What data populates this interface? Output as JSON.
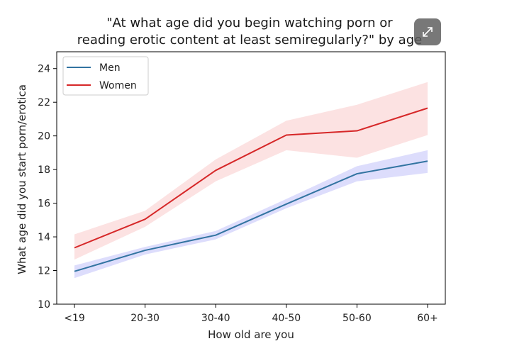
{
  "chart_data": {
    "type": "line",
    "title": "\"At what age did you begin watching porn or reading erotic content at least semiregularly?\" by age",
    "title_lines": [
      "\"At what age did you begin watching porn or",
      "reading erotic content at least semiregularly?\" by age"
    ],
    "xlabel": "How old are you",
    "ylabel": "What age did you start porn/erotica",
    "categories": [
      "<19",
      "20-30",
      "30-40",
      "40-50",
      "50-60",
      "60+"
    ],
    "ylim": [
      10,
      25
    ],
    "yticks": [
      10,
      12,
      14,
      16,
      18,
      20,
      22,
      24
    ],
    "grid": false,
    "legend_position": "top-left",
    "series": [
      {
        "name": "Men",
        "color": "#3274a1",
        "band_color": "#4040ee",
        "values": [
          11.95,
          13.2,
          14.1,
          15.95,
          17.75,
          18.5
        ],
        "ci_lower": [
          11.55,
          12.95,
          13.85,
          15.7,
          17.3,
          17.8
        ],
        "ci_upper": [
          12.3,
          13.4,
          14.35,
          16.25,
          18.2,
          19.15
        ]
      },
      {
        "name": "Women",
        "color": "#d62728",
        "band_color": "#f28a8a",
        "values": [
          13.35,
          15.05,
          17.95,
          20.05,
          20.3,
          21.65
        ],
        "ci_lower": [
          12.65,
          14.6,
          17.3,
          19.15,
          18.7,
          20.05
        ],
        "ci_upper": [
          14.15,
          15.55,
          18.6,
          20.9,
          21.85,
          23.2
        ]
      }
    ]
  },
  "ui": {
    "expand_icon": "expand-icon"
  }
}
